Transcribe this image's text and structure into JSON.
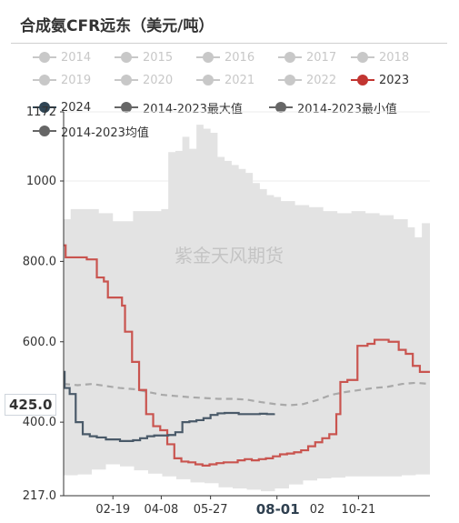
{
  "title": "合成氨CFR远东（美元/吨）",
  "watermark": "紫金天风期货",
  "cursor": {
    "y_value": "425.0",
    "x_value": "08-01"
  },
  "legend": [
    {
      "name": "2014",
      "color": "#c8c8c8",
      "active": false
    },
    {
      "name": "2015",
      "color": "#c8c8c8",
      "active": false
    },
    {
      "name": "2016",
      "color": "#c8c8c8",
      "active": false
    },
    {
      "name": "2017",
      "color": "#c8c8c8",
      "active": false
    },
    {
      "name": "2018",
      "color": "#c8c8c8",
      "active": false
    },
    {
      "name": "2019",
      "color": "#c8c8c8",
      "active": false
    },
    {
      "name": "2020",
      "color": "#c8c8c8",
      "active": false
    },
    {
      "name": "2021",
      "color": "#c8c8c8",
      "active": false
    },
    {
      "name": "2022",
      "color": "#c8c8c8",
      "active": false
    },
    {
      "name": "2023",
      "color": "#c23531",
      "active": true
    },
    {
      "name": "2024",
      "color": "#2f4554",
      "active": true
    },
    {
      "name": "2014-2023最大值",
      "color": "#666666",
      "active": true
    },
    {
      "name": "2014-2023最小值",
      "color": "#666666",
      "active": true
    },
    {
      "name": "2014-2023均值",
      "color": "#666666",
      "active": true
    }
  ],
  "chart_data": {
    "type": "line",
    "x_start": "01-01",
    "x_end": "12-31",
    "x_tick_labels": [
      "02-19",
      "04-08",
      "05-27",
      "08-01",
      "10-21"
    ],
    "x_ticks_partial": [
      "02"
    ],
    "ylim": [
      217,
      1172
    ],
    "y_tick_labels": [
      "217.0",
      "400.0",
      "600.0",
      "800.0",
      "1000",
      "1172"
    ],
    "grid": "horizontal",
    "colors": {
      "band": "#e3e3e3",
      "s2023": "#c9544f",
      "s2024": "#4a5a69",
      "avg": "#a9a9a9"
    },
    "series": [
      {
        "name": "2014-2023最大值",
        "points": [
          [
            "01-01",
            905
          ],
          [
            "01-08",
            930
          ],
          [
            "01-22",
            930
          ],
          [
            "02-05",
            920
          ],
          [
            "02-19",
            900
          ],
          [
            "03-04",
            900
          ],
          [
            "03-11",
            925
          ],
          [
            "03-25",
            925
          ],
          [
            "04-08",
            930
          ],
          [
            "04-15",
            1072
          ],
          [
            "04-22",
            1075
          ],
          [
            "04-29",
            1110
          ],
          [
            "05-06",
            1080
          ],
          [
            "05-13",
            1140
          ],
          [
            "05-20",
            1130
          ],
          [
            "05-27",
            1120
          ],
          [
            "06-03",
            1060
          ],
          [
            "06-10",
            1050
          ],
          [
            "06-17",
            1040
          ],
          [
            "06-24",
            1030
          ],
          [
            "07-01",
            1020
          ],
          [
            "07-08",
            995
          ],
          [
            "07-15",
            980
          ],
          [
            "07-22",
            965
          ],
          [
            "07-29",
            960
          ],
          [
            "08-05",
            950
          ],
          [
            "08-19",
            940
          ],
          [
            "09-02",
            935
          ],
          [
            "09-16",
            925
          ],
          [
            "09-30",
            920
          ],
          [
            "10-14",
            925
          ],
          [
            "10-28",
            920
          ],
          [
            "11-11",
            915
          ],
          [
            "11-25",
            905
          ],
          [
            "12-09",
            885
          ],
          [
            "12-16",
            860
          ],
          [
            "12-23",
            895
          ],
          [
            "12-31",
            910
          ]
        ]
      },
      {
        "name": "2014-2023最小值",
        "points": [
          [
            "01-01",
            265
          ],
          [
            "01-15",
            268
          ],
          [
            "01-29",
            270
          ],
          [
            "02-12",
            282
          ],
          [
            "02-26",
            295
          ],
          [
            "03-12",
            290
          ],
          [
            "03-26",
            280
          ],
          [
            "04-09",
            272
          ],
          [
            "04-23",
            265
          ],
          [
            "05-07",
            258
          ],
          [
            "05-21",
            250
          ],
          [
            "06-04",
            248
          ],
          [
            "06-18",
            238
          ],
          [
            "07-02",
            235
          ],
          [
            "07-16",
            232
          ],
          [
            "07-30",
            228
          ],
          [
            "08-13",
            235
          ],
          [
            "08-27",
            245
          ],
          [
            "09-10",
            255
          ],
          [
            "09-24",
            260
          ],
          [
            "10-08",
            262
          ],
          [
            "10-22",
            265
          ],
          [
            "11-05",
            265
          ],
          [
            "11-19",
            265
          ],
          [
            "12-03",
            265
          ],
          [
            "12-17",
            268
          ],
          [
            "12-31",
            270
          ]
        ]
      },
      {
        "name": "2014-2023均值",
        "points": [
          [
            "01-01",
            495
          ],
          [
            "01-15",
            492
          ],
          [
            "01-29",
            495
          ],
          [
            "02-12",
            490
          ],
          [
            "02-26",
            485
          ],
          [
            "03-12",
            482
          ],
          [
            "03-26",
            475
          ],
          [
            "04-09",
            468
          ],
          [
            "04-23",
            465
          ],
          [
            "05-07",
            462
          ],
          [
            "05-21",
            460
          ],
          [
            "06-04",
            458
          ],
          [
            "06-18",
            458
          ],
          [
            "07-02",
            456
          ],
          [
            "07-16",
            450
          ],
          [
            "07-30",
            445
          ],
          [
            "08-13",
            442
          ],
          [
            "08-27",
            445
          ],
          [
            "09-10",
            455
          ],
          [
            "09-24",
            468
          ],
          [
            "10-08",
            475
          ],
          [
            "10-22",
            480
          ],
          [
            "11-05",
            485
          ],
          [
            "11-19",
            488
          ],
          [
            "12-03",
            495
          ],
          [
            "12-17",
            498
          ],
          [
            "12-31",
            495
          ]
        ]
      },
      {
        "name": "2023",
        "points": [
          [
            "01-01",
            840
          ],
          [
            "01-03",
            810
          ],
          [
            "01-24",
            805
          ],
          [
            "02-03",
            760
          ],
          [
            "02-10",
            750
          ],
          [
            "02-14",
            710
          ],
          [
            "02-28",
            690
          ],
          [
            "03-03",
            625
          ],
          [
            "03-10",
            550
          ],
          [
            "03-17",
            480
          ],
          [
            "03-24",
            420
          ],
          [
            "03-31",
            390
          ],
          [
            "04-07",
            380
          ],
          [
            "04-14",
            345
          ],
          [
            "04-21",
            310
          ],
          [
            "04-28",
            302
          ],
          [
            "05-05",
            300
          ],
          [
            "05-12",
            295
          ],
          [
            "05-19",
            292
          ],
          [
            "05-26",
            295
          ],
          [
            "06-02",
            298
          ],
          [
            "06-09",
            300
          ],
          [
            "06-16",
            300
          ],
          [
            "06-23",
            305
          ],
          [
            "06-30",
            308
          ],
          [
            "07-07",
            305
          ],
          [
            "07-14",
            308
          ],
          [
            "07-21",
            310
          ],
          [
            "07-28",
            315
          ],
          [
            "08-04",
            320
          ],
          [
            "08-11",
            322
          ],
          [
            "08-18",
            325
          ],
          [
            "08-25",
            330
          ],
          [
            "09-01",
            340
          ],
          [
            "09-08",
            350
          ],
          [
            "09-15",
            360
          ],
          [
            "09-22",
            370
          ],
          [
            "09-29",
            420
          ],
          [
            "10-03",
            500
          ],
          [
            "10-10",
            505
          ],
          [
            "10-20",
            590
          ],
          [
            "10-30",
            595
          ],
          [
            "11-06",
            605
          ],
          [
            "11-13",
            605
          ],
          [
            "11-20",
            600
          ],
          [
            "11-30",
            580
          ],
          [
            "12-07",
            570
          ],
          [
            "12-14",
            540
          ],
          [
            "12-21",
            525
          ],
          [
            "12-31",
            525
          ]
        ]
      },
      {
        "name": "2024",
        "points": [
          [
            "01-01",
            525
          ],
          [
            "01-02",
            485
          ],
          [
            "01-07",
            470
          ],
          [
            "01-13",
            400
          ],
          [
            "01-20",
            370
          ],
          [
            "01-27",
            365
          ],
          [
            "02-03",
            362
          ],
          [
            "02-12",
            357
          ],
          [
            "02-26",
            353
          ],
          [
            "03-11",
            355
          ],
          [
            "03-18",
            360
          ],
          [
            "03-25",
            365
          ],
          [
            "04-01",
            367
          ],
          [
            "04-15",
            368
          ],
          [
            "04-22",
            375
          ],
          [
            "04-29",
            400
          ],
          [
            "05-06",
            402
          ],
          [
            "05-13",
            405
          ],
          [
            "05-20",
            410
          ],
          [
            "05-27",
            418
          ],
          [
            "06-03",
            422
          ],
          [
            "06-10",
            423
          ],
          [
            "06-24",
            420
          ],
          [
            "07-08",
            420
          ],
          [
            "07-15",
            421
          ],
          [
            "07-22",
            420
          ],
          [
            "07-29",
            422
          ]
        ]
      }
    ]
  }
}
